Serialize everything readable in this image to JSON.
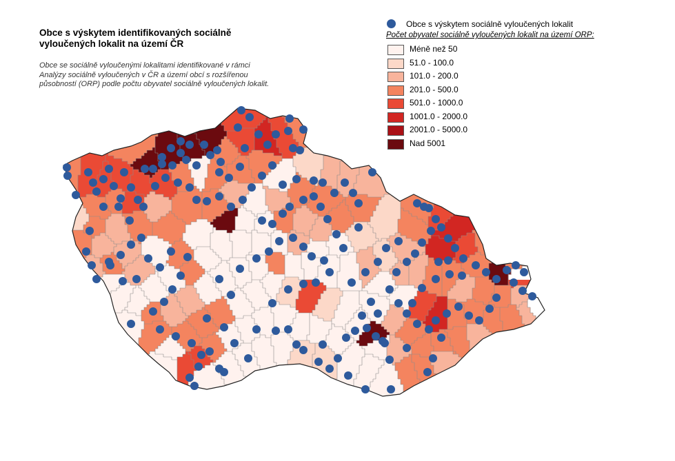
{
  "title": "Obce s výskytem identifikovaných sociálně vyloučených lokalit na území ČR",
  "subtitle": "Obce se sociálně vyloučenými lokalitami identifikované v rámci Analýzy sociálně vyloučených v ČR a území obcí s rozšířenou působností (ORP) podle počtu obyvatel sociálně vyloučených lokalit.",
  "legend": {
    "point_label": "Obce s výskytem sociálně vyloučených lokalit",
    "point_color": "#2e5a9c",
    "heading": "Počet obyvatel sociálně vyloučených lokalit na území ORP:",
    "classes": [
      {
        "label": "Méně než 50",
        "color": "#fff2ee"
      },
      {
        "label": "51.0 - 100.0",
        "color": "#fcd8c8"
      },
      {
        "label": "101.0 - 200.0",
        "color": "#f8b49c"
      },
      {
        "label": "201.0 - 500.0",
        "color": "#f4845f"
      },
      {
        "label": "501.0 - 1000.0",
        "color": "#ea4a35"
      },
      {
        "label": "1001.0 - 2000.0",
        "color": "#d22622"
      },
      {
        "label": "2001.0 - 5000.0",
        "color": "#ab1116"
      },
      {
        "label": "Nad 5001",
        "color": "#6b0a0f"
      }
    ]
  }
}
